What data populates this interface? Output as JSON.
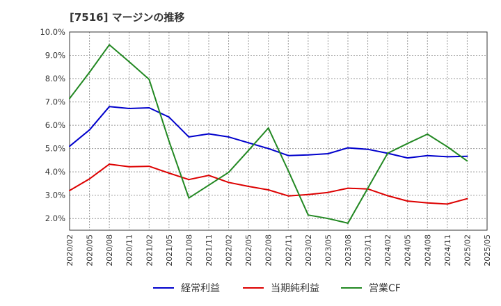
{
  "title": "[7516]  マージンの推移",
  "chart_data": {
    "type": "line",
    "x": [
      "2020/02",
      "2020/05",
      "2020/08",
      "2020/11",
      "2021/02",
      "2021/05",
      "2021/08",
      "2021/11",
      "2022/02",
      "2022/05",
      "2022/08",
      "2022/11",
      "2023/02",
      "2023/05",
      "2023/08",
      "2023/11",
      "2024/02",
      "2024/05",
      "2024/08",
      "2024/11",
      "2025/02",
      "2025/05"
    ],
    "ylim": [
      1.5,
      10.0
    ],
    "yticks": [
      "2.0%",
      "3.0%",
      "4.0%",
      "5.0%",
      "6.0%",
      "7.0%",
      "8.0%",
      "9.0%",
      "10.0%"
    ],
    "ytick_values": [
      2,
      3,
      4,
      5,
      6,
      7,
      8,
      9,
      10
    ],
    "grid": true,
    "legend_position": "bottom",
    "series": [
      {
        "name": "経常利益",
        "color": "#0000cc",
        "values": [
          5.1,
          5.8,
          6.8,
          6.72,
          6.75,
          6.35,
          5.5,
          5.63,
          5.5,
          5.25,
          5.0,
          4.7,
          4.73,
          4.78,
          5.03,
          4.97,
          4.8,
          4.6,
          4.7,
          4.65,
          4.67,
          null
        ]
      },
      {
        "name": "当期純利益",
        "color": "#dd0000",
        "values": [
          3.2,
          3.7,
          4.33,
          4.22,
          4.24,
          3.95,
          3.67,
          3.85,
          3.55,
          3.38,
          3.23,
          2.97,
          3.03,
          3.12,
          3.3,
          3.27,
          2.98,
          2.75,
          2.67,
          2.62,
          2.85,
          null
        ]
      },
      {
        "name": "営業CF",
        "color": "#228822",
        "values": [
          7.15,
          8.27,
          9.45,
          8.72,
          7.97,
          5.32,
          2.88,
          3.43,
          3.98,
          4.92,
          5.88,
          4.05,
          2.15,
          2.0,
          1.8,
          3.3,
          4.8,
          5.22,
          5.62,
          5.08,
          4.47,
          null
        ]
      }
    ]
  }
}
